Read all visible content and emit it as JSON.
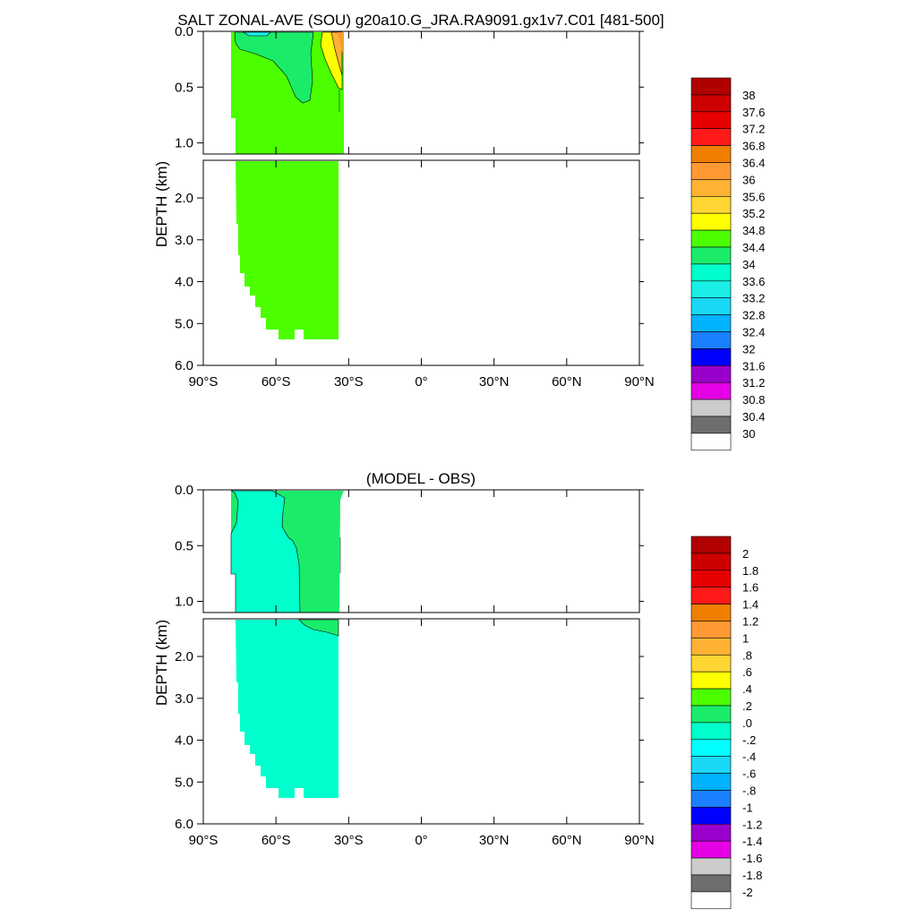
{
  "chart_data": [
    {
      "type": "contour",
      "title": "SALT ZONAL-AVE (SOU) g20a10.G_JRA.RA9091.gx1v7.C01 [481-500]",
      "ylabel": "DEPTH (km)",
      "xlabel": "",
      "xlim": [
        -90,
        90
      ],
      "ylim_upper": [
        0.0,
        1.1
      ],
      "ylim_lower": [
        1.1,
        6.0
      ],
      "x_ticks": [
        "90°S",
        "60°S",
        "30°S",
        "0°",
        "30°N",
        "60°N",
        "90°N"
      ],
      "y_ticks_upper": [
        "0.0",
        "0.5",
        "1.0"
      ],
      "y_ticks_lower": [
        "2.0",
        "3.0",
        "4.0",
        "5.0",
        "6.0"
      ],
      "colorbar_labels": [
        "38",
        "37.6",
        "37.2",
        "36.8",
        "36.4",
        "36",
        "35.6",
        "35.2",
        "34.8",
        "34.4",
        "34",
        "33.6",
        "33.2",
        "32.8",
        "32.4",
        "32",
        "31.6",
        "31.2",
        "30.8",
        "30.4",
        "30"
      ],
      "colorbar_colors": [
        "#b00000",
        "#cc0000",
        "#e60000",
        "#ff1a1a",
        "#f07f00",
        "#ff9933",
        "#ffb233",
        "#ffd633",
        "#ffff00",
        "#4cff00",
        "#1aec6a",
        "#00ffcc",
        "#1aeee6",
        "#1ad8f5",
        "#00b2ff",
        "#1a80ff",
        "#0000ff",
        "#9900cc",
        "#e600e6",
        "#cccccc",
        "#6e6e6e",
        "#ffffff"
      ]
    },
    {
      "type": "contour",
      "title": "(MODEL - OBS)",
      "ylabel": "DEPTH (km)",
      "xlabel": "",
      "xlim": [
        -90,
        90
      ],
      "ylim_upper": [
        0.0,
        1.1
      ],
      "ylim_lower": [
        1.1,
        6.0
      ],
      "x_ticks": [
        "90°S",
        "60°S",
        "30°S",
        "0°",
        "30°N",
        "60°N",
        "90°N"
      ],
      "y_ticks_upper": [
        "0.0",
        "0.5",
        "1.0"
      ],
      "y_ticks_lower": [
        "2.0",
        "3.0",
        "4.0",
        "5.0",
        "6.0"
      ],
      "colorbar_labels": [
        "2",
        "1.8",
        "1.6",
        "1.4",
        "1.2",
        "1",
        ".8",
        ".6",
        ".4",
        ".2",
        ".0",
        "-.2",
        "-.4",
        "-.6",
        "-.8",
        "-1",
        "-1.2",
        "-1.4",
        "-1.6",
        "-1.8",
        "-2"
      ],
      "colorbar_colors": [
        "#b00000",
        "#cc0000",
        "#e60000",
        "#ff1a1a",
        "#f07f00",
        "#ff9933",
        "#ffb233",
        "#ffd633",
        "#ffff00",
        "#4cff00",
        "#1aec6a",
        "#00ffcc",
        "#00ffff",
        "#1ad8f5",
        "#00b2ff",
        "#1a80ff",
        "#0000ff",
        "#9900cc",
        "#e600e6",
        "#cccccc",
        "#6e6e6e",
        "#ffffff"
      ]
    }
  ]
}
